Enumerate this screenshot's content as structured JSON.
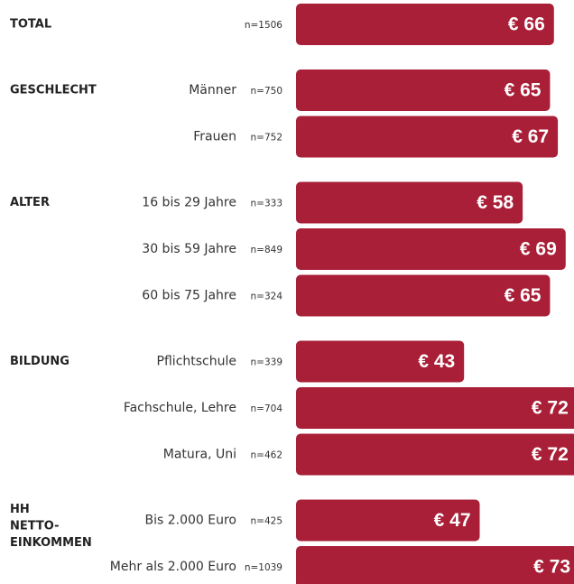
{
  "chart_data": {
    "type": "bar",
    "color": "#a91f37",
    "groups": [
      {
        "name": [
          "TOTAL"
        ],
        "categories": [
          null
        ],
        "n_labels": [
          "n=1506"
        ],
        "values": [
          66
        ],
        "value_labels": [
          "€ 66"
        ]
      },
      {
        "name": [
          "GESCHLECHT"
        ],
        "categories": [
          "Männer",
          "Frauen"
        ],
        "n_labels": [
          "n=750",
          "n=752"
        ],
        "values": [
          65,
          67
        ],
        "value_labels": [
          "€ 65",
          "€ 67"
        ]
      },
      {
        "name": [
          "ALTER"
        ],
        "categories": [
          "16 bis 29 Jahre",
          "30 bis 59 Jahre",
          "60 bis 75 Jahre"
        ],
        "n_labels": [
          "n=333",
          "n=849",
          "n=324"
        ],
        "values": [
          58,
          69,
          65
        ],
        "value_labels": [
          "€ 58",
          "€ 69",
          "€ 65"
        ]
      },
      {
        "name": [
          "BILDUNG"
        ],
        "categories": [
          "Pflichtschule",
          "Fachschule, Lehre",
          "Matura, Uni"
        ],
        "n_labels": [
          "n=339",
          "n=704",
          "n=462"
        ],
        "values": [
          43,
          72,
          72
        ],
        "value_labels": [
          "€ 43",
          "€ 72",
          "€ 72"
        ]
      },
      {
        "name": [
          "HH",
          "NETTO-",
          "EINKOMMEN"
        ],
        "categories": [
          "Bis 2.000 Euro",
          "Mehr als 2.000 Euro"
        ],
        "n_labels": [
          "n=425",
          "n=1039"
        ],
        "values": [
          47,
          73
        ],
        "value_labels": [
          "€ 47",
          "€ 73"
        ]
      }
    ]
  }
}
